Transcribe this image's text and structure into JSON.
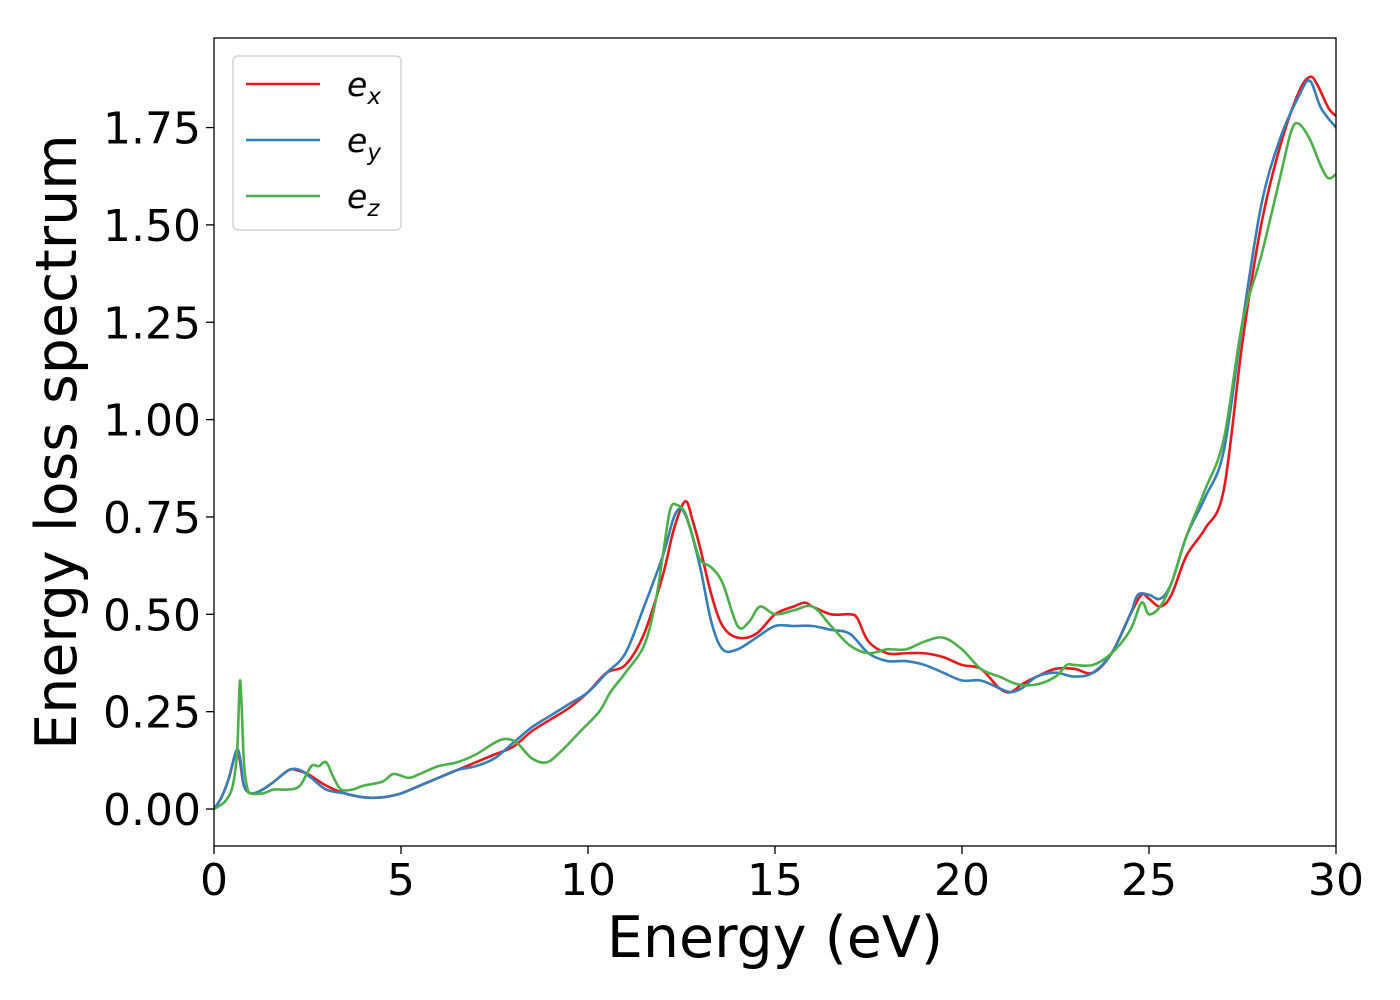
{
  "chart_data": {
    "type": "line",
    "xlabel": "Energy (eV)",
    "ylabel": "Energy loss spectrum",
    "xlim": [
      0,
      30
    ],
    "ylim": [
      -0.095,
      1.98
    ],
    "xticks": [
      0,
      5,
      10,
      15,
      20,
      25,
      30
    ],
    "xtick_labels": [
      "0",
      "5",
      "10",
      "15",
      "20",
      "25",
      "30"
    ],
    "yticks": [
      0.0,
      0.25,
      0.5,
      0.75,
      1.0,
      1.25,
      1.5,
      1.75
    ],
    "ytick_labels": [
      "0.00",
      "0.25",
      "0.50",
      "0.75",
      "1.00",
      "1.25",
      "1.50",
      "1.75"
    ],
    "grid": false,
    "legend_position": "top-left",
    "series": [
      {
        "name": "e_x",
        "label_base": "e",
        "label_sub": "x",
        "color": "#e41a1c",
        "x": [
          0,
          0.2,
          0.4,
          0.6,
          0.7,
          0.8,
          1.0,
          1.3,
          1.6,
          2.0,
          2.2,
          2.5,
          3.0,
          3.5,
          4.0,
          4.5,
          5.0,
          5.5,
          6.0,
          6.5,
          7.0,
          7.5,
          8.0,
          8.5,
          9.0,
          9.5,
          10.0,
          10.5,
          11.0,
          11.5,
          12.0,
          12.3,
          12.6,
          12.8,
          13.0,
          13.3,
          13.6,
          14.0,
          14.5,
          15.0,
          15.5,
          15.8,
          16.0,
          16.5,
          17.0,
          17.2,
          17.5,
          18.0,
          18.5,
          19.0,
          19.5,
          20.0,
          20.5,
          21.0,
          21.3,
          21.6,
          22.0,
          22.5,
          23.0,
          23.5,
          24.0,
          24.5,
          24.8,
          25.0,
          25.3,
          25.6,
          26.0,
          26.5,
          27.0,
          27.5,
          28.0,
          28.5,
          29.0,
          29.3,
          29.5,
          29.8,
          30.0
        ],
        "y": [
          0.0,
          0.03,
          0.08,
          0.15,
          0.12,
          0.06,
          0.04,
          0.05,
          0.07,
          0.1,
          0.1,
          0.09,
          0.06,
          0.04,
          0.03,
          0.03,
          0.04,
          0.06,
          0.08,
          0.1,
          0.12,
          0.14,
          0.16,
          0.2,
          0.23,
          0.26,
          0.3,
          0.35,
          0.37,
          0.45,
          0.6,
          0.72,
          0.79,
          0.74,
          0.67,
          0.55,
          0.47,
          0.44,
          0.45,
          0.5,
          0.52,
          0.53,
          0.52,
          0.5,
          0.5,
          0.49,
          0.43,
          0.4,
          0.4,
          0.4,
          0.39,
          0.37,
          0.36,
          0.31,
          0.3,
          0.32,
          0.34,
          0.36,
          0.36,
          0.35,
          0.4,
          0.5,
          0.55,
          0.54,
          0.52,
          0.55,
          0.65,
          0.72,
          0.82,
          1.2,
          1.5,
          1.7,
          1.84,
          1.88,
          1.86,
          1.8,
          1.78
        ]
      },
      {
        "name": "e_y",
        "label_base": "e",
        "label_sub": "y",
        "color": "#377eb8",
        "x": [
          0,
          0.2,
          0.4,
          0.6,
          0.7,
          0.8,
          1.0,
          1.3,
          1.6,
          2.0,
          2.3,
          2.6,
          3.0,
          3.5,
          4.0,
          4.5,
          5.0,
          5.5,
          6.0,
          6.5,
          7.0,
          7.5,
          8.0,
          8.5,
          9.0,
          9.5,
          10.0,
          10.5,
          11.0,
          11.5,
          12.0,
          12.3,
          12.5,
          12.7,
          13.0,
          13.3,
          13.6,
          14.0,
          14.5,
          15.0,
          15.5,
          16.0,
          16.5,
          17.0,
          17.5,
          18.0,
          18.5,
          19.0,
          19.5,
          20.0,
          20.5,
          21.0,
          21.3,
          21.6,
          22.0,
          22.5,
          23.0,
          23.5,
          24.0,
          24.5,
          24.7,
          25.0,
          25.3,
          25.6,
          26.0,
          26.5,
          27.0,
          27.5,
          28.0,
          28.5,
          29.0,
          29.3,
          29.6,
          30.0
        ],
        "y": [
          0.0,
          0.03,
          0.08,
          0.15,
          0.13,
          0.06,
          0.04,
          0.05,
          0.07,
          0.1,
          0.1,
          0.08,
          0.05,
          0.04,
          0.03,
          0.03,
          0.04,
          0.06,
          0.08,
          0.1,
          0.11,
          0.13,
          0.17,
          0.21,
          0.24,
          0.27,
          0.3,
          0.35,
          0.4,
          0.52,
          0.65,
          0.75,
          0.77,
          0.73,
          0.62,
          0.48,
          0.41,
          0.41,
          0.44,
          0.47,
          0.47,
          0.47,
          0.46,
          0.45,
          0.4,
          0.38,
          0.38,
          0.37,
          0.35,
          0.33,
          0.33,
          0.31,
          0.3,
          0.31,
          0.34,
          0.35,
          0.34,
          0.35,
          0.4,
          0.5,
          0.55,
          0.55,
          0.54,
          0.58,
          0.7,
          0.8,
          0.92,
          1.25,
          1.55,
          1.72,
          1.83,
          1.87,
          1.8,
          1.75
        ]
      },
      {
        "name": "e_z",
        "label_base": "e",
        "label_sub": "z",
        "color": "#4daf4a",
        "x": [
          0,
          0.3,
          0.5,
          0.62,
          0.7,
          0.8,
          0.9,
          1.0,
          1.3,
          1.6,
          2.0,
          2.3,
          2.6,
          2.8,
          3.0,
          3.2,
          3.4,
          3.7,
          4.0,
          4.5,
          4.8,
          5.2,
          5.5,
          6.0,
          6.5,
          7.0,
          7.5,
          7.8,
          8.1,
          8.5,
          8.9,
          9.3,
          9.8,
          10.3,
          10.6,
          11.0,
          11.5,
          11.8,
          12.0,
          12.2,
          12.4,
          12.6,
          12.8,
          13.0,
          13.3,
          13.6,
          14.0,
          14.3,
          14.6,
          15.0,
          15.5,
          16.0,
          16.5,
          17.0,
          17.5,
          18.0,
          18.5,
          19.0,
          19.5,
          20.0,
          20.5,
          21.0,
          21.5,
          22.0,
          22.5,
          22.8,
          23.0,
          23.5,
          24.0,
          24.5,
          24.8,
          25.0,
          25.3,
          25.6,
          26.0,
          26.5,
          27.0,
          27.5,
          28.0,
          28.5,
          28.8,
          29.0,
          29.3,
          29.6,
          29.8,
          30.0
        ],
        "y": [
          0.0,
          0.02,
          0.06,
          0.15,
          0.33,
          0.12,
          0.05,
          0.04,
          0.04,
          0.05,
          0.05,
          0.06,
          0.11,
          0.11,
          0.12,
          0.08,
          0.05,
          0.05,
          0.06,
          0.07,
          0.09,
          0.08,
          0.09,
          0.11,
          0.12,
          0.14,
          0.17,
          0.18,
          0.17,
          0.13,
          0.12,
          0.15,
          0.2,
          0.25,
          0.3,
          0.35,
          0.42,
          0.53,
          0.65,
          0.77,
          0.78,
          0.76,
          0.7,
          0.64,
          0.62,
          0.58,
          0.47,
          0.48,
          0.52,
          0.5,
          0.51,
          0.52,
          0.47,
          0.42,
          0.4,
          0.41,
          0.41,
          0.43,
          0.44,
          0.41,
          0.36,
          0.34,
          0.32,
          0.32,
          0.34,
          0.37,
          0.37,
          0.37,
          0.4,
          0.46,
          0.53,
          0.5,
          0.52,
          0.58,
          0.7,
          0.82,
          0.95,
          1.25,
          1.42,
          1.62,
          1.74,
          1.76,
          1.72,
          1.65,
          1.62,
          1.63
        ]
      }
    ]
  }
}
